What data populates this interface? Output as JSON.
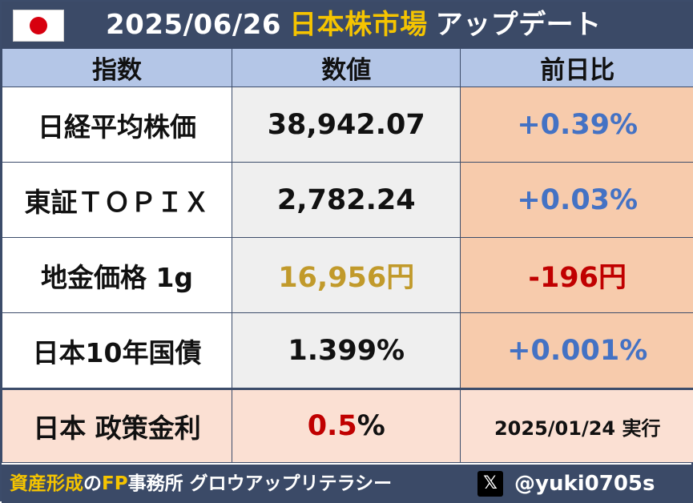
{
  "header": {
    "date": "2025/06/26",
    "market": "日本株市場",
    "update": "アップデート",
    "flag_icon": "japan-flag-icon"
  },
  "table": {
    "columns": [
      "指数",
      "数値",
      "前日比"
    ],
    "rows": [
      {
        "name": "日経平均株価",
        "value": "38,942.07",
        "change": "+0.39%"
      },
      {
        "name": "東証ＴＯＰＩＸ",
        "value": "2,782.24",
        "change": "+0.03%"
      },
      {
        "name": "地金価格 1g",
        "value": "16,956円",
        "change": "-196円"
      },
      {
        "name": "日本10年国債",
        "value": "1.399%",
        "change": "+0.001%"
      }
    ],
    "policy": {
      "name": "日本 政策金利",
      "value_number": "0.5",
      "value_unit": "%",
      "date": "2025/01/24 実行"
    }
  },
  "footer": {
    "office_part1": "資産形成",
    "office_part2": "の",
    "office_part3": "FP",
    "office_part4": "事務所 グロウアップリテラシー",
    "x_icon": "x-logo-icon",
    "x_glyph": "𝕏",
    "handle": "@yuki0705s"
  },
  "colors": {
    "header_bg": "#3b4a67",
    "column_header_bg": "#b4c6e7",
    "accent_yellow": "#f5c400",
    "positive_blue": "#4472c4",
    "negative_red": "#c00000",
    "gold": "#c19a2b",
    "change_bg": "#f7cbac",
    "policy_bg": "#fbe0d3"
  }
}
